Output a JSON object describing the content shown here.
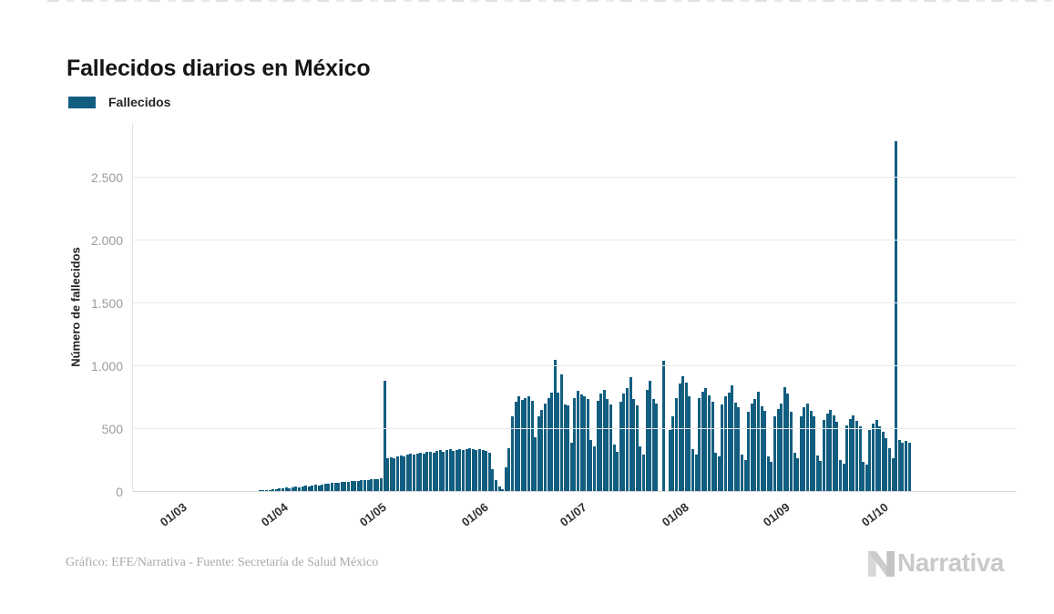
{
  "page": {
    "title": "Fallecidos diarios en México"
  },
  "legend": {
    "label": "Fallecidos",
    "color": "#125E80"
  },
  "footer": {
    "credit": "Gráfico: EFE/Narrativa - Fuente: Secretaría de Salud México",
    "brand": "Narrativa"
  },
  "icons": {
    "brand_mark": "narrativa-n-logo"
  },
  "chart_data": {
    "type": "bar",
    "title": "Fallecidos diarios en México",
    "series_name": "Fallecidos",
    "xlabel": "",
    "ylabel": "Número de fallecidos",
    "bar_color": "#125E80",
    "grid": true,
    "legend_position": "top-left",
    "ylim": [
      0,
      2935
    ],
    "y_ticks": [
      0,
      500,
      1000,
      1500,
      2000,
      2500
    ],
    "y_tick_labels": [
      "0",
      "500",
      "1.000",
      "1.500",
      "2.000",
      "2.500"
    ],
    "x_tick_labels": [
      "01/03",
      "01/04",
      "01/05",
      "01/06",
      "01/07",
      "01/08",
      "01/09",
      "01/10"
    ],
    "start_date": "2020-02-26",
    "month_tick_indices": [
      4,
      35,
      65,
      96,
      126,
      157,
      188,
      218
    ],
    "notable_points": {
      "2020-05-02": 884,
      "2020-06-23": 1052,
      "2020-07-26": 1044,
      "2020-10-05": 2789
    },
    "values": [
      0,
      0,
      0,
      1,
      0,
      1,
      0,
      1,
      1,
      2,
      1,
      1,
      2,
      2,
      1,
      2,
      3,
      2,
      3,
      4,
      4,
      3,
      5,
      6,
      5,
      8,
      10,
      9,
      12,
      15,
      14,
      18,
      22,
      25,
      28,
      30,
      33,
      31,
      37,
      41,
      39,
      45,
      49,
      47,
      53,
      57,
      54,
      61,
      65,
      62,
      69,
      73,
      70,
      77,
      81,
      78,
      85,
      89,
      86,
      93,
      97,
      94,
      101,
      105,
      102,
      110,
      884,
      268,
      276,
      270,
      286,
      290,
      282,
      296,
      302,
      294,
      306,
      312,
      304,
      316,
      320,
      310,
      324,
      330,
      320,
      334,
      338,
      328,
      332,
      340,
      334,
      342,
      346,
      338,
      336,
      344,
      335,
      325,
      315,
      178,
      92,
      45,
      22,
      195,
      350,
      605,
      715,
      762,
      731,
      748,
      760,
      728,
      435,
      598,
      652,
      702,
      745,
      788,
      1052,
      790,
      938,
      698,
      685,
      392,
      748,
      802,
      778,
      758,
      740,
      410,
      365,
      725,
      780,
      810,
      742,
      695,
      380,
      320,
      715,
      782,
      828,
      910,
      738,
      690,
      360,
      300,
      812,
      885,
      740,
      706,
      8,
      1044,
      6,
      495,
      598,
      745,
      865,
      920,
      868,
      760,
      340,
      295,
      745,
      800,
      825,
      770,
      720,
      310,
      280,
      698,
      760,
      790,
      846,
      712,
      672,
      295,
      255,
      640,
      705,
      738,
      795,
      680,
      645,
      280,
      240,
      602,
      660,
      700,
      832,
      780,
      640,
      310,
      270,
      605,
      672,
      700,
      648,
      600,
      290,
      250,
      570,
      625,
      655,
      610,
      560,
      255,
      225,
      530,
      580,
      612,
      568,
      520,
      240,
      215,
      495,
      545,
      570,
      525,
      475,
      430,
      350,
      270,
      2789,
      410,
      395,
      405,
      390
    ]
  }
}
